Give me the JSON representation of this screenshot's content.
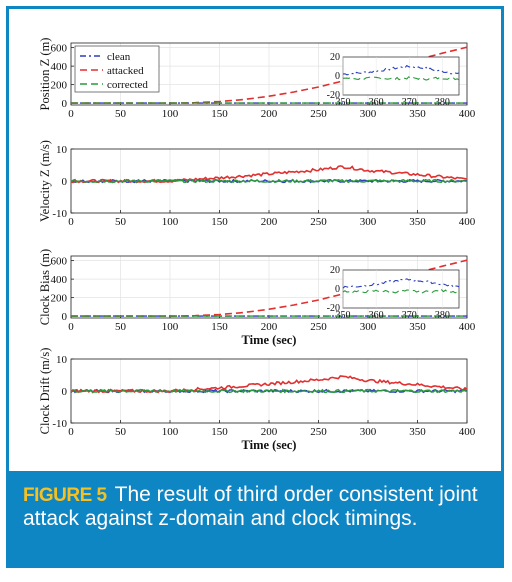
{
  "colors": {
    "clean": "#2b3fbf",
    "attacked": "#e03030",
    "corrected": "#2a9a3a",
    "frame": "#0f86c4",
    "caption_head": "#f7c021"
  },
  "caption": {
    "label": "FIGURE 5",
    "text": "The result of third order consistent joint attack against z-domain and clock timings."
  },
  "chart_data": [
    {
      "type": "line",
      "ylabel": "Position Z (m)",
      "xlabel": "",
      "xlim": [
        0,
        400
      ],
      "ylim": [
        -20,
        650
      ],
      "xticks": [
        0,
        50,
        100,
        150,
        200,
        250,
        300,
        350,
        400
      ],
      "yticks": [
        0,
        200,
        400,
        600
      ],
      "grid": true,
      "legend": {
        "placement": "top-left",
        "entries": [
          "clean",
          "attacked",
          "corrected"
        ]
      },
      "series": [
        {
          "name": "clean",
          "x": [
            0,
            400
          ],
          "y": [
            0,
            0
          ]
        },
        {
          "name": "attacked",
          "x": [
            0,
            100,
            125,
            150,
            175,
            200,
            225,
            250,
            275,
            300,
            325,
            350,
            375,
            400
          ],
          "y": [
            0,
            0,
            5,
            18,
            40,
            75,
            120,
            175,
            240,
            320,
            400,
            470,
            540,
            605
          ]
        },
        {
          "name": "corrected",
          "x": [
            0,
            400
          ],
          "y": [
            0,
            0
          ]
        }
      ],
      "inset": {
        "xlim": [
          350,
          385
        ],
        "ylim": [
          -20,
          20
        ],
        "xticks": [
          350,
          360,
          370,
          380
        ],
        "yticks": [
          -20,
          0,
          20
        ],
        "series": [
          {
            "name": "clean",
            "x": [
              350,
              355,
              360,
              365,
              370,
              375,
              380,
              385
            ],
            "y": [
              2,
              3,
              5,
              8,
              10,
              8,
              5,
              2
            ]
          },
          {
            "name": "corrected",
            "x": [
              350,
              355,
              360,
              365,
              370,
              375,
              380,
              385
            ],
            "y": [
              -2,
              -3,
              -2,
              -3,
              -2,
              -3,
              -2,
              -3
            ]
          }
        ]
      }
    },
    {
      "type": "line",
      "ylabel": "Velocity Z (m/s)",
      "xlabel": "",
      "xlim": [
        0,
        400
      ],
      "ylim": [
        -10,
        10
      ],
      "xticks": [
        0,
        50,
        100,
        150,
        200,
        250,
        300,
        350,
        400
      ],
      "yticks": [
        -10,
        0,
        10
      ],
      "grid": true,
      "series": [
        {
          "name": "clean",
          "x": [
            0,
            400
          ],
          "y": [
            0,
            0
          ]
        },
        {
          "name": "attacked",
          "x": [
            0,
            100,
            150,
            200,
            250,
            275,
            300,
            350,
            400
          ],
          "y": [
            0,
            0,
            1.0,
            2.2,
            3.5,
            4.5,
            3.3,
            2.0,
            0.5
          ]
        },
        {
          "name": "corrected",
          "x": [
            0,
            400
          ],
          "y": [
            0,
            0
          ]
        }
      ]
    },
    {
      "type": "line",
      "ylabel": "Clock Bias (m)",
      "xlabel": "Time (sec)",
      "xlim": [
        0,
        400
      ],
      "ylim": [
        -20,
        650
      ],
      "xticks": [
        0,
        50,
        100,
        150,
        200,
        250,
        300,
        350,
        400
      ],
      "yticks": [
        0,
        200,
        400,
        600
      ],
      "grid": true,
      "series": [
        {
          "name": "clean",
          "x": [
            0,
            400
          ],
          "y": [
            0,
            0
          ]
        },
        {
          "name": "attacked",
          "x": [
            0,
            100,
            125,
            150,
            175,
            200,
            225,
            250,
            275,
            300,
            325,
            350,
            375,
            400
          ],
          "y": [
            0,
            0,
            5,
            18,
            40,
            75,
            120,
            175,
            240,
            320,
            400,
            470,
            540,
            605
          ]
        },
        {
          "name": "corrected",
          "x": [
            0,
            400
          ],
          "y": [
            0,
            0
          ]
        }
      ],
      "inset": {
        "xlim": [
          350,
          385
        ],
        "ylim": [
          -20,
          20
        ],
        "xticks": [
          350,
          360,
          370,
          380
        ],
        "yticks": [
          -20,
          0,
          20
        ],
        "series": [
          {
            "name": "clean",
            "x": [
              350,
              355,
              360,
              365,
              370,
              375,
              380,
              385
            ],
            "y": [
              2,
              3,
              5,
              8,
              10,
              8,
              5,
              2
            ]
          },
          {
            "name": "corrected",
            "x": [
              350,
              355,
              360,
              365,
              370,
              375,
              380,
              385
            ],
            "y": [
              -2,
              -3,
              -2,
              -3,
              -2,
              -3,
              -2,
              -3
            ]
          }
        ]
      }
    },
    {
      "type": "line",
      "ylabel": "Clock Drift (m/s)",
      "xlabel": "Time (sec)",
      "xlim": [
        0,
        400
      ],
      "ylim": [
        -10,
        10
      ],
      "xticks": [
        0,
        50,
        100,
        150,
        200,
        250,
        300,
        350,
        400
      ],
      "yticks": [
        -10,
        0,
        10
      ],
      "grid": true,
      "series": [
        {
          "name": "clean",
          "x": [
            0,
            400
          ],
          "y": [
            0,
            0
          ]
        },
        {
          "name": "attacked",
          "x": [
            0,
            100,
            150,
            200,
            250,
            275,
            300,
            350,
            400
          ],
          "y": [
            0,
            0,
            1.0,
            2.2,
            3.5,
            4.5,
            3.3,
            2.0,
            0.5
          ]
        },
        {
          "name": "corrected",
          "x": [
            0,
            400
          ],
          "y": [
            0,
            0
          ]
        }
      ]
    }
  ]
}
